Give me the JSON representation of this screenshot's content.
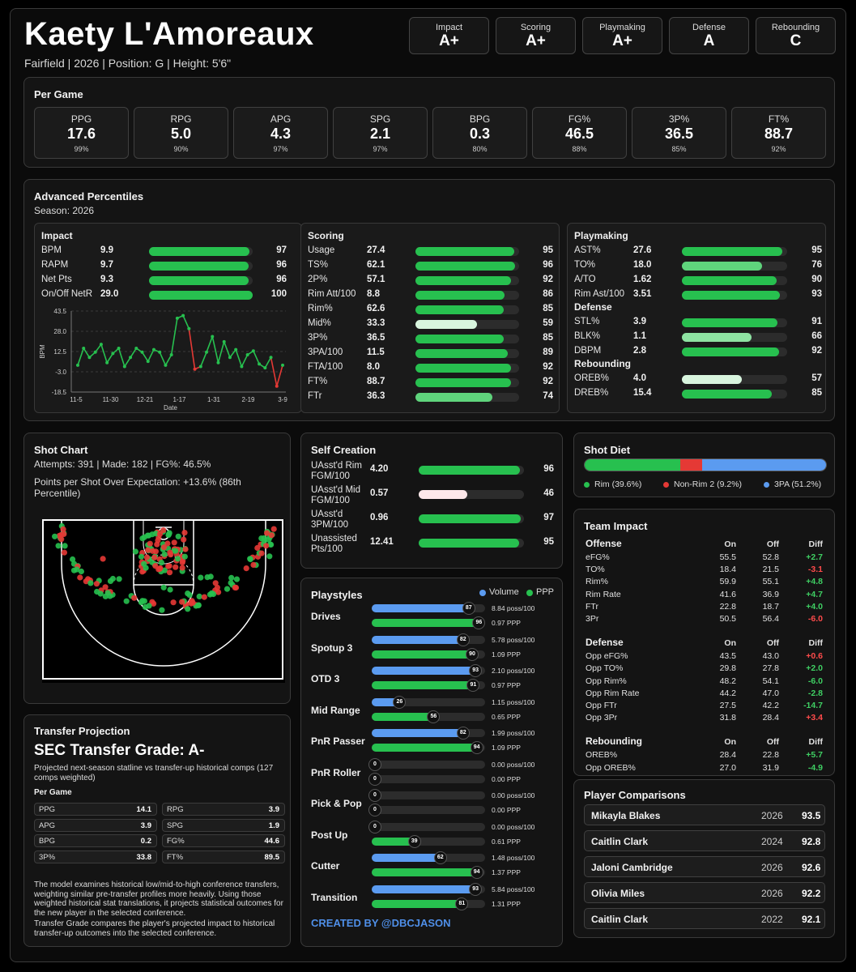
{
  "header": {
    "name": "Kaety L'Amoreaux",
    "subtitle": "Fairfield | 2026 | Position: G | Height: 5'6\""
  },
  "grades": [
    {
      "label": "Impact",
      "value": "A+"
    },
    {
      "label": "Scoring",
      "value": "A+"
    },
    {
      "label": "Playmaking",
      "value": "A+"
    },
    {
      "label": "Defense",
      "value": "A"
    },
    {
      "label": "Rebounding",
      "value": "C"
    }
  ],
  "per_game": {
    "title": "Per Game",
    "stats": [
      {
        "label": "PPG",
        "value": "17.6",
        "pct": "99%"
      },
      {
        "label": "RPG",
        "value": "5.0",
        "pct": "90%"
      },
      {
        "label": "APG",
        "value": "4.3",
        "pct": "97%"
      },
      {
        "label": "SPG",
        "value": "2.1",
        "pct": "97%"
      },
      {
        "label": "BPG",
        "value": "0.3",
        "pct": "80%"
      },
      {
        "label": "FG%",
        "value": "46.5",
        "pct": "88%"
      },
      {
        "label": "3P%",
        "value": "36.5",
        "pct": "85%"
      },
      {
        "label": "FT%",
        "value": "88.7",
        "pct": "92%"
      }
    ]
  },
  "advanced": {
    "title": "Advanced Percentiles",
    "season": "Season: 2026",
    "impact": {
      "title": "Impact",
      "rows": [
        {
          "label": "BPM",
          "value": "9.9",
          "pct": 97
        },
        {
          "label": "RAPM",
          "value": "9.7",
          "pct": 96
        },
        {
          "label": "Net Pts",
          "value": "9.3",
          "pct": 96
        },
        {
          "label": "On/Off NetR",
          "value": "29.0",
          "pct": 100
        }
      ]
    },
    "scoring": {
      "title": "Scoring",
      "rows": [
        {
          "label": "Usage",
          "value": "27.4",
          "pct": 95
        },
        {
          "label": "TS%",
          "value": "62.1",
          "pct": 96
        },
        {
          "label": "2P%",
          "value": "57.1",
          "pct": 92
        },
        {
          "label": "Rim Att/100",
          "value": "8.8",
          "pct": 86
        },
        {
          "label": "Rim%",
          "value": "62.6",
          "pct": 85
        },
        {
          "label": "Mid%",
          "value": "33.3",
          "pct": 59
        },
        {
          "label": "3P%",
          "value": "36.5",
          "pct": 85
        },
        {
          "label": "3PA/100",
          "value": "11.5",
          "pct": 89
        },
        {
          "label": "FTA/100",
          "value": "8.0",
          "pct": 92
        },
        {
          "label": "FT%",
          "value": "88.7",
          "pct": 92
        },
        {
          "label": "FTr",
          "value": "36.3",
          "pct": 74
        }
      ]
    },
    "playmaking": {
      "title": "Playmaking",
      "rows": [
        {
          "label": "AST%",
          "value": "27.6",
          "pct": 95
        },
        {
          "label": "TO%",
          "value": "18.0",
          "pct": 76
        },
        {
          "label": "A/TO",
          "value": "1.62",
          "pct": 90
        },
        {
          "label": "Rim Ast/100",
          "value": "3.51",
          "pct": 93
        }
      ]
    },
    "defense": {
      "title": "Defense",
      "rows": [
        {
          "label": "STL%",
          "value": "3.9",
          "pct": 91
        },
        {
          "label": "BLK%",
          "value": "1.1",
          "pct": 66
        },
        {
          "label": "DBPM",
          "value": "2.8",
          "pct": 92
        }
      ]
    },
    "rebounding": {
      "title": "Rebounding",
      "rows": [
        {
          "label": "OREB%",
          "value": "4.0",
          "pct": 57
        },
        {
          "label": "DREB%",
          "value": "15.4",
          "pct": 85
        }
      ]
    }
  },
  "chart_data": {
    "type": "line",
    "xlabel": "Date",
    "ylabel": "BPM",
    "yticks": [
      "43.5",
      "28.0",
      "12.5",
      "-3.0",
      "-18.5"
    ],
    "ylim": [
      -18.5,
      43.5
    ],
    "xticks": [
      "11-5",
      "11-30",
      "12-21",
      "1-17",
      "1-31",
      "2-19",
      "3-9"
    ],
    "values": [
      2,
      15,
      8,
      12,
      18,
      4,
      11,
      15,
      1,
      8,
      15,
      12,
      5,
      14,
      12,
      2,
      10,
      38,
      40,
      30,
      -1,
      1,
      12,
      24,
      4,
      20,
      8,
      14,
      1,
      10,
      13,
      3,
      0,
      8,
      -14,
      2
    ]
  },
  "shot_chart": {
    "title": "Shot Chart",
    "summary": "Attempts: 391 | Made: 182 | FG%: 46.5%",
    "ppse": "Points per Shot Over Expectation: +13.6% (86th Percentile)"
  },
  "self_creation": {
    "title": "Self Creation",
    "rows": [
      {
        "l1": "UAsst'd Rim",
        "l2": "FGM/100",
        "value": "4.20",
        "pct": 96
      },
      {
        "l1": "UAsst'd Mid",
        "l2": "FGM/100",
        "value": "0.57",
        "pct": 46
      },
      {
        "l1": "UAsst'd",
        "l2": "3PM/100",
        "value": "0.96",
        "pct": 97
      },
      {
        "l1": "Unassisted",
        "l2": "Pts/100",
        "value": "12.41",
        "pct": 95
      }
    ]
  },
  "shot_diet": {
    "title": "Shot Diet",
    "segments": [
      {
        "label": "Rim (39.6%)",
        "pct": 39.6,
        "color": "#27c04f"
      },
      {
        "label": "Non-Rim 2 (9.2%)",
        "pct": 9.2,
        "color": "#e53935"
      },
      {
        "label": "3PA (51.2%)",
        "pct": 51.2,
        "color": "#5b9bf0"
      }
    ]
  },
  "playstyles": {
    "title": "Playstyles",
    "legend_volume": "Volume",
    "legend_ppp": "PPP",
    "credit": "CREATED BY @DBCJASON",
    "items": [
      {
        "name": "Drives",
        "vol": 87,
        "vol_text": "8.84 poss/100",
        "ppp": 96,
        "ppp_text": "0.97 PPP"
      },
      {
        "name": "Spotup 3",
        "vol": 82,
        "vol_text": "5.78 poss/100",
        "ppp": 90,
        "ppp_text": "1.09 PPP"
      },
      {
        "name": "OTD 3",
        "vol": 93,
        "vol_text": "2.10 poss/100",
        "ppp": 91,
        "ppp_text": "0.97 PPP"
      },
      {
        "name": "Mid Range",
        "vol": 26,
        "vol_text": "1.15 poss/100",
        "ppp": 56,
        "ppp_text": "0.65 PPP"
      },
      {
        "name": "PnR Passer",
        "vol": 82,
        "vol_text": "1.99 poss/100",
        "ppp": 94,
        "ppp_text": "1.09 PPP"
      },
      {
        "name": "PnR Roller",
        "vol": 0,
        "vol_text": "0.00 poss/100",
        "ppp": 0,
        "ppp_text": "0.00 PPP"
      },
      {
        "name": "Pick & Pop",
        "vol": 0,
        "vol_text": "0.00 poss/100",
        "ppp": 0,
        "ppp_text": "0.00 PPP"
      },
      {
        "name": "Post Up",
        "vol": 0,
        "vol_text": "0.00 poss/100",
        "ppp": 39,
        "ppp_text": "0.61 PPP"
      },
      {
        "name": "Cutter",
        "vol": 62,
        "vol_text": "1.48 poss/100",
        "ppp": 94,
        "ppp_text": "1.37 PPP"
      },
      {
        "name": "Transition",
        "vol": 93,
        "vol_text": "5.84 poss/100",
        "ppp": 81,
        "ppp_text": "1.31 PPP"
      }
    ]
  },
  "team_impact": {
    "title": "Team Impact",
    "col_on": "On",
    "col_off": "Off",
    "col_diff": "Diff",
    "groups": [
      {
        "name": "Offense",
        "rows": [
          [
            "eFG%",
            "55.5",
            "52.8",
            "+2.7"
          ],
          [
            "TO%",
            "18.4",
            "21.5",
            "-3.1"
          ],
          [
            "Rim%",
            "59.9",
            "55.1",
            "+4.8"
          ],
          [
            "Rim Rate",
            "41.6",
            "36.9",
            "+4.7"
          ],
          [
            "FTr",
            "22.8",
            "18.7",
            "+4.0"
          ],
          [
            "3Pr",
            "50.5",
            "56.4",
            "-6.0"
          ]
        ]
      },
      {
        "name": "Defense",
        "rows": [
          [
            "Opp eFG%",
            "43.5",
            "43.0",
            "+0.6"
          ],
          [
            "Opp TO%",
            "29.8",
            "27.8",
            "+2.0"
          ],
          [
            "Opp Rim%",
            "48.2",
            "54.1",
            "-6.0"
          ],
          [
            "Opp Rim Rate",
            "44.2",
            "47.0",
            "-2.8"
          ],
          [
            "Opp FTr",
            "27.5",
            "42.2",
            "-14.7"
          ],
          [
            "Opp 3Pr",
            "31.8",
            "28.4",
            "+3.4"
          ]
        ]
      },
      {
        "name": "Rebounding",
        "rows": [
          [
            "OREB%",
            "28.4",
            "22.8",
            "+5.7"
          ],
          [
            "Opp OREB%",
            "27.0",
            "31.9",
            "-4.9"
          ]
        ]
      }
    ]
  },
  "comparisons": {
    "title": "Player Comparisons",
    "players": [
      {
        "name": "Mikayla Blakes",
        "year": "2026",
        "score": "93.5"
      },
      {
        "name": "Caitlin Clark",
        "year": "2024",
        "score": "92.8"
      },
      {
        "name": "Jaloni Cambridge",
        "year": "2026",
        "score": "92.6"
      },
      {
        "name": "Olivia Miles",
        "year": "2026",
        "score": "92.2"
      },
      {
        "name": "Caitlin Clark",
        "year": "2022",
        "score": "92.1"
      }
    ]
  },
  "transfer": {
    "title": "Transfer Projection",
    "grade": "SEC Transfer Grade: A-",
    "desc": "Projected next-season statline vs transfer-up historical comps (127 comps weighted)",
    "sub": "Per Game",
    "stats": [
      {
        "k": "PPG",
        "v": "14.1"
      },
      {
        "k": "RPG",
        "v": "3.9"
      },
      {
        "k": "APG",
        "v": "3.9"
      },
      {
        "k": "SPG",
        "v": "1.9"
      },
      {
        "k": "BPG",
        "v": "0.2"
      },
      {
        "k": "FG%",
        "v": "44.6"
      },
      {
        "k": "3P%",
        "v": "33.8"
      },
      {
        "k": "FT%",
        "v": "89.5"
      }
    ],
    "note1": "The model examines historical low/mid-to-high conference transfers, weighting similar pre-transfer profiles more heavily. Using those weighted historical stat translations, it projects statistical outcomes for the new player in the selected conference.",
    "note2": "Transfer Grade compares the player's projected impact to historical transfer-up outcomes into the selected conference."
  }
}
